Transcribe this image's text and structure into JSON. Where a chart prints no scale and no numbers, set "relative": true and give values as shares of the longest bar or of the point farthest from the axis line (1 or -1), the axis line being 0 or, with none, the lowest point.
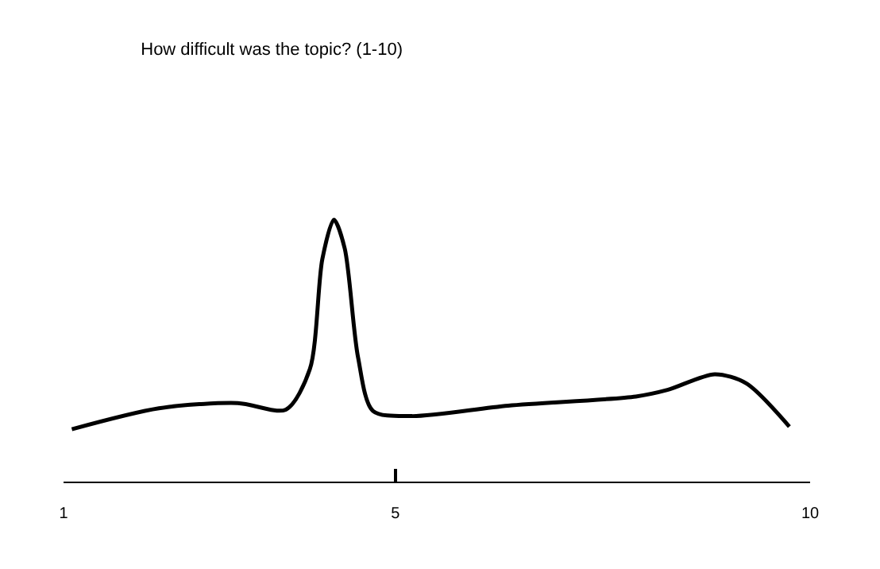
{
  "chart_data": {
    "type": "line",
    "title": "How difficult was the topic? (1-10)",
    "relative": true,
    "x": [
      1.1,
      2.15,
      3.1,
      3.68,
      3.97,
      4.12,
      4.26,
      4.39,
      4.55,
      4.73,
      5.2,
      6.36,
      7.9,
      8.28,
      8.85,
      9.23,
      9.75
    ],
    "series": [
      {
        "color": "#000000",
        "values": [
          0.2,
          0.28,
          0.3,
          0.275,
          0.43,
          0.85,
          1.0,
          0.89,
          0.475,
          0.27,
          0.25,
          0.29,
          0.325,
          0.35,
          0.41,
          0.375,
          0.21
        ]
      }
    ],
    "xlim": [
      1,
      10
    ],
    "xticks": [
      1,
      5,
      10
    ],
    "marker": "none",
    "line_style": "solid"
  }
}
